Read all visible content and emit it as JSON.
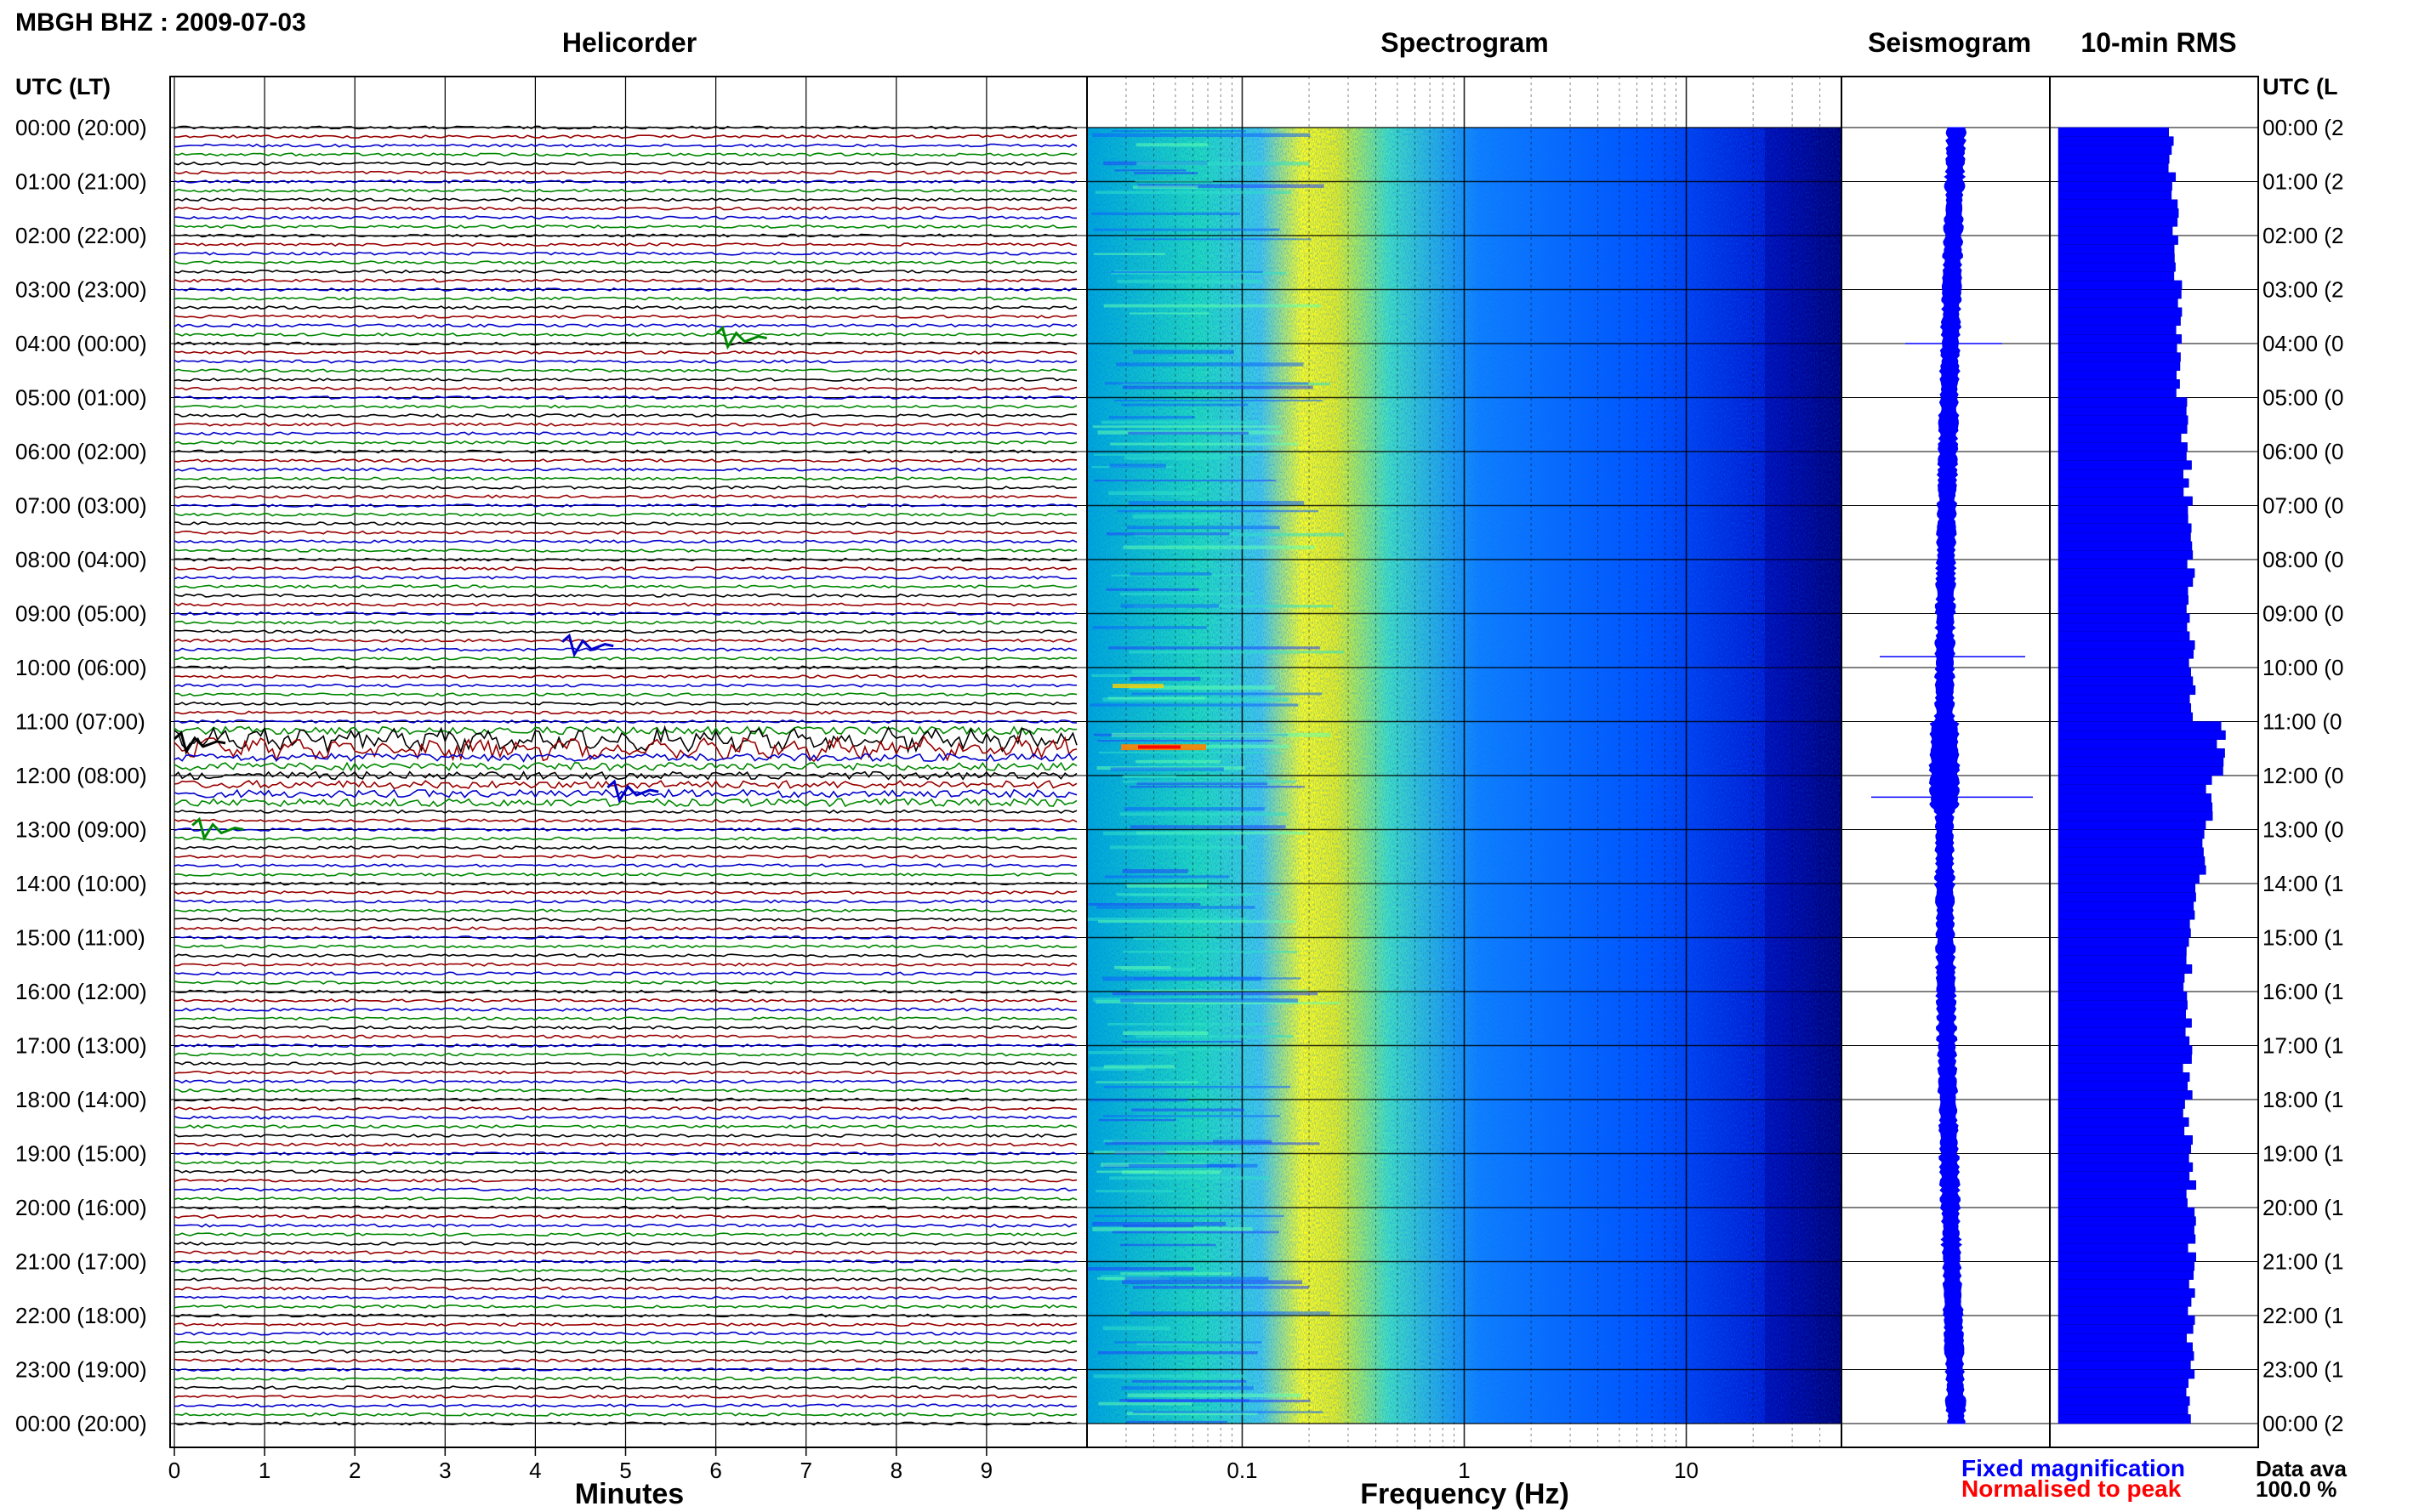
{
  "header": {
    "station_title": "MBGH BHZ : 2009-07-03"
  },
  "panels": {
    "helicorder": "Helicorder",
    "spectrogram": "Spectrogram",
    "seismogram": "Seismogram",
    "rms": "10-min RMS"
  },
  "axis": {
    "left_header": "UTC (LT)",
    "right_header": "UTC (L",
    "minutes_label": "Minutes",
    "frequency_label": "Frequency (Hz)"
  },
  "time_labels": [
    "00:00 (20:00)",
    "01:00 (21:00)",
    "02:00 (22:00)",
    "03:00 (23:00)",
    "04:00 (00:00)",
    "05:00 (01:00)",
    "06:00 (02:00)",
    "07:00 (03:00)",
    "08:00 (04:00)",
    "09:00 (05:00)",
    "10:00 (06:00)",
    "11:00 (07:00)",
    "12:00 (08:00)",
    "13:00 (09:00)",
    "14:00 (10:00)",
    "15:00 (11:00)",
    "16:00 (12:00)",
    "17:00 (13:00)",
    "18:00 (14:00)",
    "19:00 (15:00)",
    "20:00 (16:00)",
    "21:00 (17:00)",
    "22:00 (18:00)",
    "23:00 (19:00)",
    "00:00 (20:00)"
  ],
  "right_time_labels": [
    "00:00 (2",
    "01:00 (2",
    "02:00 (2",
    "03:00 (2",
    "04:00 (0",
    "05:00 (0",
    "06:00 (0",
    "07:00 (0",
    "08:00 (0",
    "09:00 (0",
    "10:00 (0",
    "11:00 (0",
    "12:00 (0",
    "13:00 (0",
    "14:00 (1",
    "15:00 (1",
    "16:00 (1",
    "17:00 (1",
    "18:00 (1",
    "19:00 (1",
    "20:00 (1",
    "21:00 (1",
    "22:00 (1",
    "23:00 (1",
    "00:00 (2"
  ],
  "legend": {
    "fixed": "Fixed magnification",
    "fixed_color": "#0000ff",
    "normalised": "Normalised to peak",
    "normalised_color": "#ff0000"
  },
  "data_availability": {
    "label": "Data ava",
    "value": "100.0 %"
  },
  "chart_data": {
    "type": "heatmap",
    "helicorder": {
      "x_range": [
        0,
        10
      ],
      "x_ticks": [
        "0",
        "1",
        "2",
        "3",
        "4",
        "5",
        "6",
        "7",
        "8",
        "9"
      ],
      "trace_colors": [
        "#000000",
        "#990000",
        "#0000cc",
        "#008800"
      ],
      "traces_per_hour": 6,
      "hours": 24,
      "events": [
        {
          "hour": 3.9,
          "minute": 6.0,
          "color": "#008800"
        },
        {
          "hour": 9.6,
          "minute": 4.3,
          "color": "#0000cc"
        },
        {
          "hour": 11.4,
          "minute": 0.0,
          "color": "#000000"
        },
        {
          "hour": 12.3,
          "minute": 4.8,
          "color": "#0000cc"
        },
        {
          "hour": 13.0,
          "minute": 0.2,
          "color": "#008800"
        }
      ]
    },
    "spectrogram": {
      "x_scale": "log",
      "x_range": [
        0.02,
        50
      ],
      "x_ticks": [
        "0.1",
        "1",
        "10"
      ],
      "colors": [
        "#00007f",
        "#0000ff",
        "#0080ff",
        "#00ffff",
        "#80ff80",
        "#ffff00",
        "#ff8000",
        "#ff0000"
      ]
    },
    "rms_per_hour": [
      0.68,
      0.7,
      0.72,
      0.72,
      0.74,
      0.76,
      0.78,
      0.78,
      0.8,
      0.8,
      0.82,
      0.98,
      0.9,
      0.86,
      0.8,
      0.78,
      0.78,
      0.78,
      0.78,
      0.8,
      0.8,
      0.8,
      0.8,
      0.8
    ],
    "seismogram_spikes": [
      {
        "hour": 4.0,
        "value": 0.6
      },
      {
        "hour": 9.8,
        "value": 0.9
      },
      {
        "hour": 12.4,
        "value": 1.0
      }
    ]
  }
}
